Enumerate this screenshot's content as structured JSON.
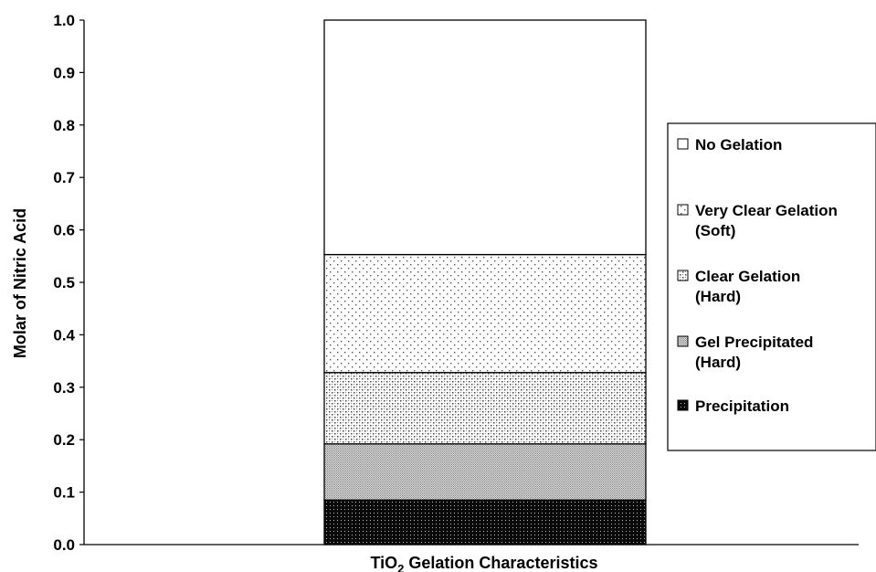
{
  "chart_data": {
    "type": "bar",
    "stacked": true,
    "categories": [
      ""
    ],
    "xlabel": "TiO₂ Gelation Characteristics",
    "xlabel_main": "TiO",
    "xlabel_sub": "2",
    "xlabel_rest": " Gelation Characteristics",
    "ylabel": "Molar of Nitric Acid",
    "ylim": [
      0,
      1.0
    ],
    "yticks": [
      "0.0",
      "0.1",
      "0.2",
      "0.3",
      "0.4",
      "0.5",
      "0.6",
      "0.7",
      "0.8",
      "0.9",
      "1.0"
    ],
    "grid": false,
    "legend_position": "right",
    "series": [
      {
        "name": "Precipitation",
        "legend_lines": [
          "Precipitation"
        ],
        "range": [
          0,
          0.085
        ],
        "values": [
          0.085
        ],
        "pattern": "dense-dark"
      },
      {
        "name": "Gel Precipitated (Hard)",
        "legend_lines": [
          "Gel Precipitated",
          "(Hard)"
        ],
        "range": [
          0.085,
          0.192
        ],
        "values": [
          0.107
        ],
        "pattern": "fine-gray"
      },
      {
        "name": "Clear Gelation (Hard)",
        "legend_lines": [
          "Clear Gelation",
          "(Hard)"
        ],
        "range": [
          0.192,
          0.328
        ],
        "values": [
          0.136
        ],
        "pattern": "checker-dots"
      },
      {
        "name": "Very Clear Gelation (Soft)",
        "legend_lines": [
          "Very Clear Gelation",
          "(Soft)"
        ],
        "range": [
          0.328,
          0.553
        ],
        "values": [
          0.225
        ],
        "pattern": "sparse-dots"
      },
      {
        "name": "No Gelation",
        "legend_lines": [
          "No Gelation"
        ],
        "range": [
          0.553,
          1.0
        ],
        "values": [
          0.447
        ],
        "pattern": "white"
      }
    ],
    "legend_order": [
      "No Gelation",
      "Very Clear Gelation (Soft)",
      "Clear Gelation (Hard)",
      "Gel Precipitated (Hard)",
      "Precipitation"
    ]
  }
}
